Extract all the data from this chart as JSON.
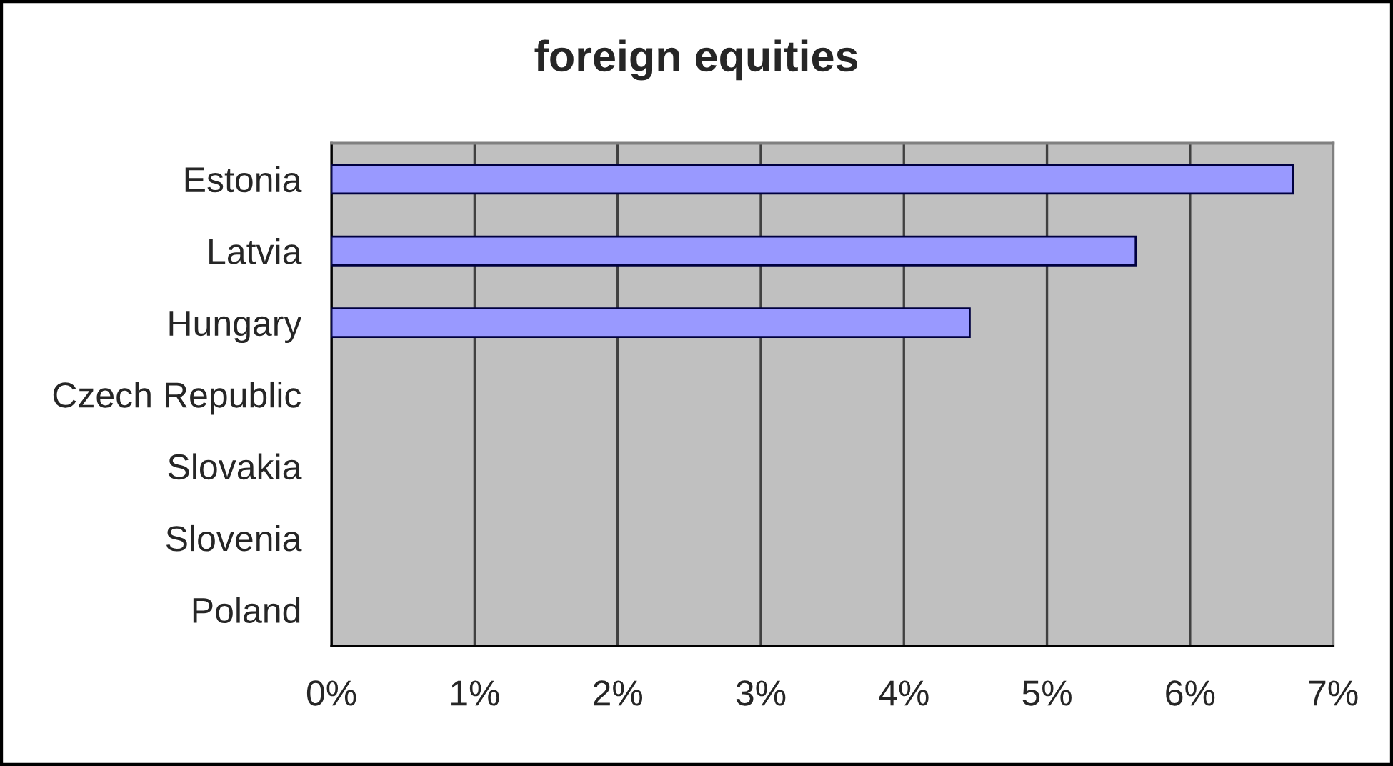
{
  "chart_data": {
    "type": "bar",
    "orientation": "horizontal",
    "title": "foreign equities",
    "categories": [
      "Estonia",
      "Latvia",
      "Hungary",
      "Czech Republic",
      "Slovakia",
      "Slovenia",
      "Poland"
    ],
    "values": [
      6.72,
      5.62,
      4.46,
      null,
      null,
      null,
      null
    ],
    "color": "#9999ff",
    "xlim": [
      0,
      7
    ],
    "xticks": [
      {
        "value": 0,
        "label": "0%"
      },
      {
        "value": 1,
        "label": "1%"
      },
      {
        "value": 2,
        "label": "2%"
      },
      {
        "value": 3,
        "label": "3%"
      },
      {
        "value": 4,
        "label": "4%"
      },
      {
        "value": 5,
        "label": "5%"
      },
      {
        "value": 6,
        "label": "6%"
      },
      {
        "value": 7,
        "label": "7%"
      }
    ],
    "grid": "x"
  }
}
